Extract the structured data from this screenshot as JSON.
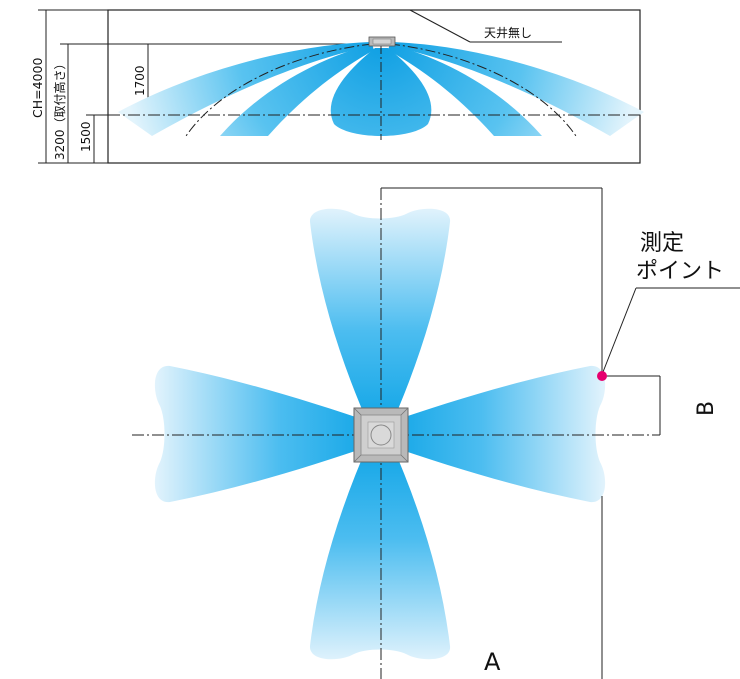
{
  "elevation": {
    "ceiling_height_label": "CH=4000",
    "mount_height_label": "3200（取付高さ）",
    "measure_height_label": "1500",
    "spread_height_label": "1700",
    "no_ceiling_label": "天井無し"
  },
  "plan": {
    "measure_point_label_line1": "測定",
    "measure_point_label_line2": "ポイント",
    "dimension_a_label": "A",
    "dimension_b_label": "B"
  },
  "colors": {
    "airflow_core": "#16a8e6",
    "airflow_edge": "#d8f0fb",
    "unit_fill": "#b9b9b9",
    "measure_point": "#e6006e"
  }
}
